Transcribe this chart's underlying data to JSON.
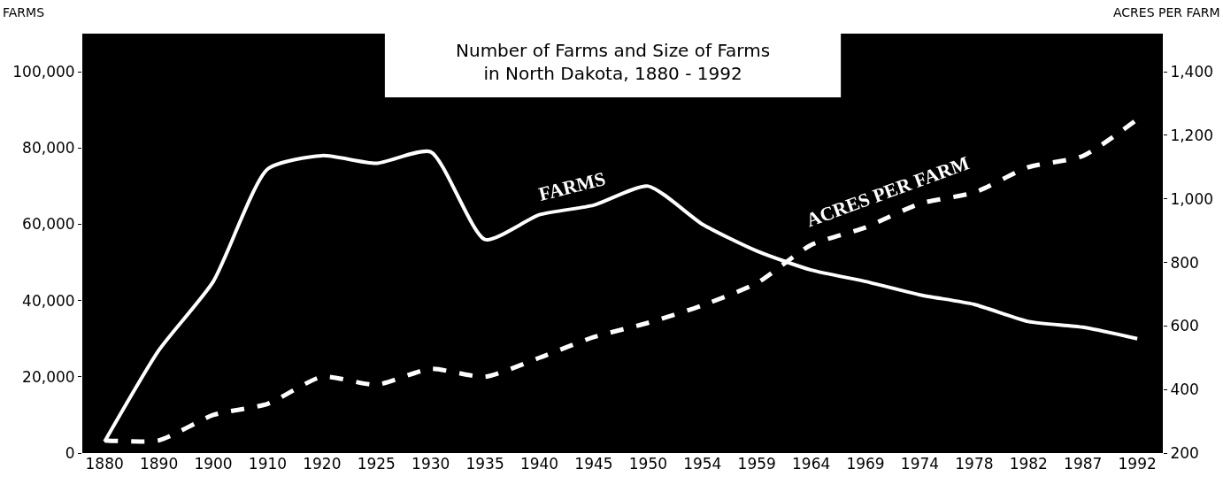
{
  "chart_data": {
    "type": "line",
    "title": "Number of Farms and Size of Farms\nin North Dakota, 1880 - 1992",
    "ylabel": "FARMS",
    "y2label": "ACRES PER FARM",
    "categories": [
      "1880",
      "1890",
      "1900",
      "1910",
      "1920",
      "1925",
      "1930",
      "1935",
      "1940",
      "1945",
      "1950",
      "1954",
      "1959",
      "1964",
      "1969",
      "1974",
      "1978",
      "1982",
      "1987",
      "1992"
    ],
    "series": [
      {
        "name": "FARMS",
        "color": "#ffffff",
        "line_style": "solid",
        "values": [
          3000,
          27000,
          45000,
          74500,
          78000,
          76000,
          79000,
          56000,
          62500,
          65000,
          70000,
          60000,
          53000,
          48000,
          45000,
          41500,
          39000,
          34500,
          33000,
          30000
        ]
      },
      {
        "name": "ACRES PER FARM",
        "color": "#ffffff",
        "line_style": "dashed",
        "axis": "y2",
        "values": [
          240,
          240,
          320,
          355,
          440,
          415,
          465,
          440,
          500,
          565,
          610,
          665,
          735,
          855,
          910,
          985,
          1020,
          1100,
          1135,
          1250
        ]
      }
    ],
    "ylim": [
      0,
      110000
    ],
    "yticks": [
      {
        "value": 0,
        "label": "0"
      },
      {
        "value": 20000,
        "label": "20,000"
      },
      {
        "value": 40000,
        "label": "40,000"
      },
      {
        "value": 60000,
        "label": "60,000"
      },
      {
        "value": 80000,
        "label": "80,000"
      },
      {
        "value": 100000,
        "label": "100,000"
      }
    ],
    "y2lim": [
      200,
      1520
    ],
    "y2ticks": [
      200,
      400,
      600,
      800,
      {
        "value": 1000,
        "label": "1,000"
      },
      {
        "value": 1200,
        "label": "1,200"
      },
      {
        "value": 1400,
        "label": "1,400"
      }
    ],
    "grid": false,
    "legend": false,
    "marker": "none"
  }
}
